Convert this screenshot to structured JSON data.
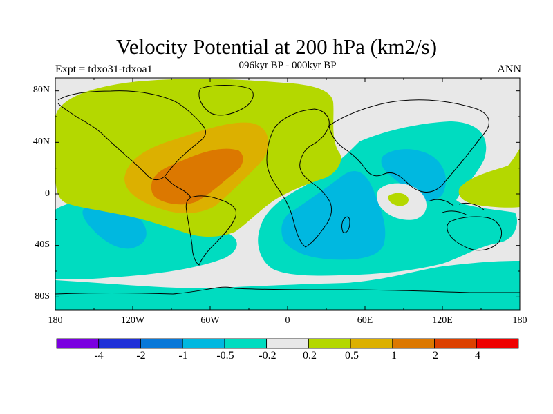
{
  "map": {
    "title": "Velocity Potential at 200 hPa (km2/s)",
    "subtitle": "096kyr BP - 000kyr BP",
    "left_label": "Expt = tdxo31-tdxoa1",
    "right_label": "ANN",
    "lat_labels": [
      "80N",
      "40N",
      "0",
      "40S",
      "80S"
    ],
    "lon_labels": [
      "180",
      "120W",
      "60W",
      "0",
      "60E",
      "120E",
      "180"
    ]
  },
  "colorbar": {
    "labels": [
      "-4",
      "-2",
      "-1",
      "-0.5",
      "-0.2",
      "0.2",
      "0.5",
      "1",
      "2",
      "4"
    ],
    "colors": [
      "#7a00e0",
      "#2030d8",
      "#0878d8",
      "#00b8e0",
      "#00dcc0",
      "#e8e8e8",
      "#b4d800",
      "#dcb000",
      "#dc7800",
      "#dc4000",
      "#ee0000"
    ]
  },
  "fill_colors": {
    "neutral": "#e8e8e8",
    "cyan": "#00dcc0",
    "blue": "#00b8e0",
    "green": "#b4d800",
    "yellow": "#dcb000",
    "orange": "#dc7800"
  }
}
